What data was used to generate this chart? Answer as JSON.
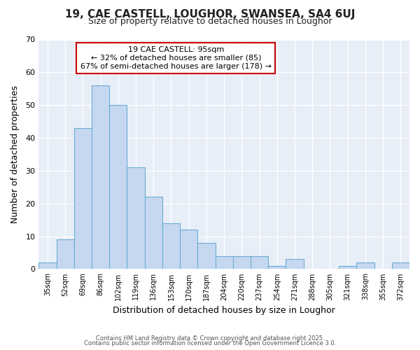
{
  "title_line1": "19, CAE CASTELL, LOUGHOR, SWANSEA, SA4 6UJ",
  "title_line2": "Size of property relative to detached houses in Loughor",
  "xlabel": "Distribution of detached houses by size in Loughor",
  "ylabel": "Number of detached properties",
  "bin_labels": [
    "35sqm",
    "52sqm",
    "69sqm",
    "86sqm",
    "102sqm",
    "119sqm",
    "136sqm",
    "153sqm",
    "170sqm",
    "187sqm",
    "204sqm",
    "220sqm",
    "237sqm",
    "254sqm",
    "271sqm",
    "288sqm",
    "305sqm",
    "321sqm",
    "338sqm",
    "355sqm",
    "372sqm"
  ],
  "bar_heights": [
    2,
    9,
    43,
    56,
    50,
    31,
    22,
    14,
    12,
    8,
    4,
    4,
    4,
    1,
    3,
    0,
    0,
    1,
    2,
    0,
    2
  ],
  "bar_color": "#c5d8f0",
  "bar_edge_color": "#6aacd4",
  "ylim": [
    0,
    70
  ],
  "yticks": [
    0,
    10,
    20,
    30,
    40,
    50,
    60,
    70
  ],
  "annotation_line1": "19 CAE CASTELL: 95sqm",
  "annotation_line2": "← 32% of detached houses are smaller (85)",
  "annotation_line3": "67% of semi-detached houses are larger (178) →",
  "annotation_box_facecolor": "#ffffff",
  "annotation_box_edgecolor": "#cc0000",
  "fig_bg_color": "#ffffff",
  "plot_bg_color": "#e8eef8",
  "grid_color": "#ffffff",
  "footer_line1": "Contains HM Land Registry data © Crown copyright and database right 2025.",
  "footer_line2": "Contains public sector information licensed under the Open Government Licence 3.0."
}
